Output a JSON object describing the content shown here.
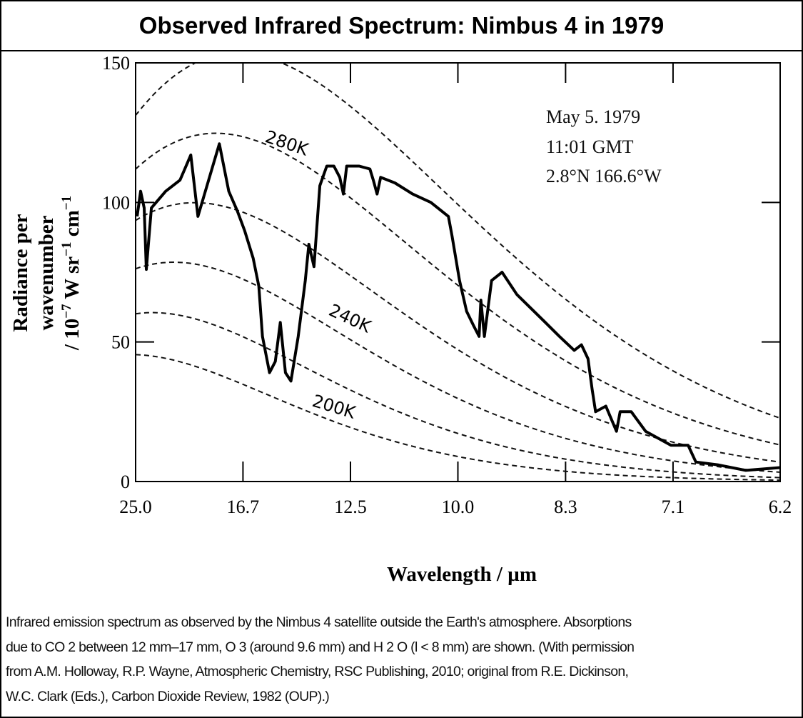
{
  "title": "Observed Infrared Spectrum: Nimbus 4 in 1979",
  "chart_data": {
    "type": "line",
    "xlabel": "Wavelength / µm",
    "ylabel_lines": [
      "Radiance per",
      "wavenumber",
      "/ 10",
      "−7",
      " W sr",
      "−1",
      " cm",
      "−1"
    ],
    "x_ticks": [
      "25.0",
      "16.7",
      "12.5",
      "10.0",
      "8.3",
      "7.1",
      "6.2"
    ],
    "x_tick_values": [
      25.0,
      16.67,
      12.5,
      10.0,
      8.33,
      7.14,
      6.25
    ],
    "x_scale": "reciprocal (linear in wavenumber)",
    "xlim": [
      25.0,
      6.25
    ],
    "y_ticks": [
      "0",
      "50",
      "100",
      "150"
    ],
    "y_tick_values": [
      0,
      50,
      100,
      150
    ],
    "ylim": [
      0,
      150
    ],
    "grid": false,
    "annotations": [
      "May 5. 1979",
      "11:01 GMT",
      "2.8°N 166.6°W"
    ],
    "curve_labels": [
      "280K",
      "240K",
      "200K"
    ],
    "blackbody_temperatures_K": [
      200,
      220,
      240,
      260,
      280,
      300
    ],
    "series": [
      {
        "style": "solid",
        "color": "#000000",
        "points": [
          [
            24.83,
            95
          ],
          [
            24.43,
            104
          ],
          [
            24.04,
            98
          ],
          [
            23.81,
            76
          ],
          [
            23.29,
            98
          ],
          [
            21.93,
            104
          ],
          [
            20.72,
            108
          ],
          [
            19.89,
            117
          ],
          [
            19.38,
            95
          ],
          [
            18.66,
            108
          ],
          [
            17.99,
            121
          ],
          [
            17.44,
            104
          ],
          [
            16.97,
            97
          ],
          [
            16.59,
            90
          ],
          [
            16.16,
            80
          ],
          [
            15.89,
            70
          ],
          [
            15.72,
            52
          ],
          [
            15.4,
            39
          ],
          [
            15.15,
            43
          ],
          [
            14.94,
            57
          ],
          [
            14.73,
            39
          ],
          [
            14.51,
            36
          ],
          [
            14.23,
            52
          ],
          [
            13.97,
            72
          ],
          [
            13.84,
            85
          ],
          [
            13.66,
            77
          ],
          [
            13.46,
            106
          ],
          [
            13.23,
            113
          ],
          [
            13.0,
            113
          ],
          [
            12.82,
            109
          ],
          [
            12.71,
            103
          ],
          [
            12.61,
            113
          ],
          [
            12.25,
            113
          ],
          [
            11.96,
            112
          ],
          [
            11.87,
            108
          ],
          [
            11.77,
            103
          ],
          [
            11.68,
            109
          ],
          [
            11.33,
            107
          ],
          [
            10.92,
            103
          ],
          [
            10.53,
            100
          ],
          [
            10.18,
            95
          ],
          [
            10.11,
            88
          ],
          [
            9.97,
            72
          ],
          [
            9.84,
            61
          ],
          [
            9.72,
            56
          ],
          [
            9.62,
            52
          ],
          [
            9.59,
            65
          ],
          [
            9.53,
            52
          ],
          [
            9.41,
            72
          ],
          [
            9.24,
            75
          ],
          [
            9.01,
            67
          ],
          [
            8.8,
            62
          ],
          [
            8.6,
            57
          ],
          [
            8.41,
            52
          ],
          [
            8.22,
            47
          ],
          [
            8.13,
            49
          ],
          [
            8.05,
            44
          ],
          [
            8.0,
            33
          ],
          [
            7.96,
            25
          ],
          [
            7.84,
            27
          ],
          [
            7.72,
            18
          ],
          [
            7.68,
            25
          ],
          [
            7.56,
            25
          ],
          [
            7.41,
            18
          ],
          [
            7.16,
            13
          ],
          [
            7.0,
            13
          ],
          [
            6.93,
            7
          ],
          [
            6.74,
            6
          ],
          [
            6.51,
            4
          ],
          [
            6.25,
            5
          ]
        ]
      }
    ]
  },
  "caption": [
    "Infrared emission spectrum as observed by the Nimbus 4 satellite outside the Earth's atmosphere. Absorptions",
    "due to CO 2 between 12 mm–17 mm, O 3 (around 9.6 mm) and H 2 O (l < 8 mm) are shown. (With permission",
    "from A.M. Holloway, R.P. Wayne, Atmospheric Chemistry, RSC Publishing, 2010; original from R.E. Dickinson,",
    "W.C. Clark (Eds.), Carbon Dioxide Review, 1982 (OUP).)"
  ]
}
